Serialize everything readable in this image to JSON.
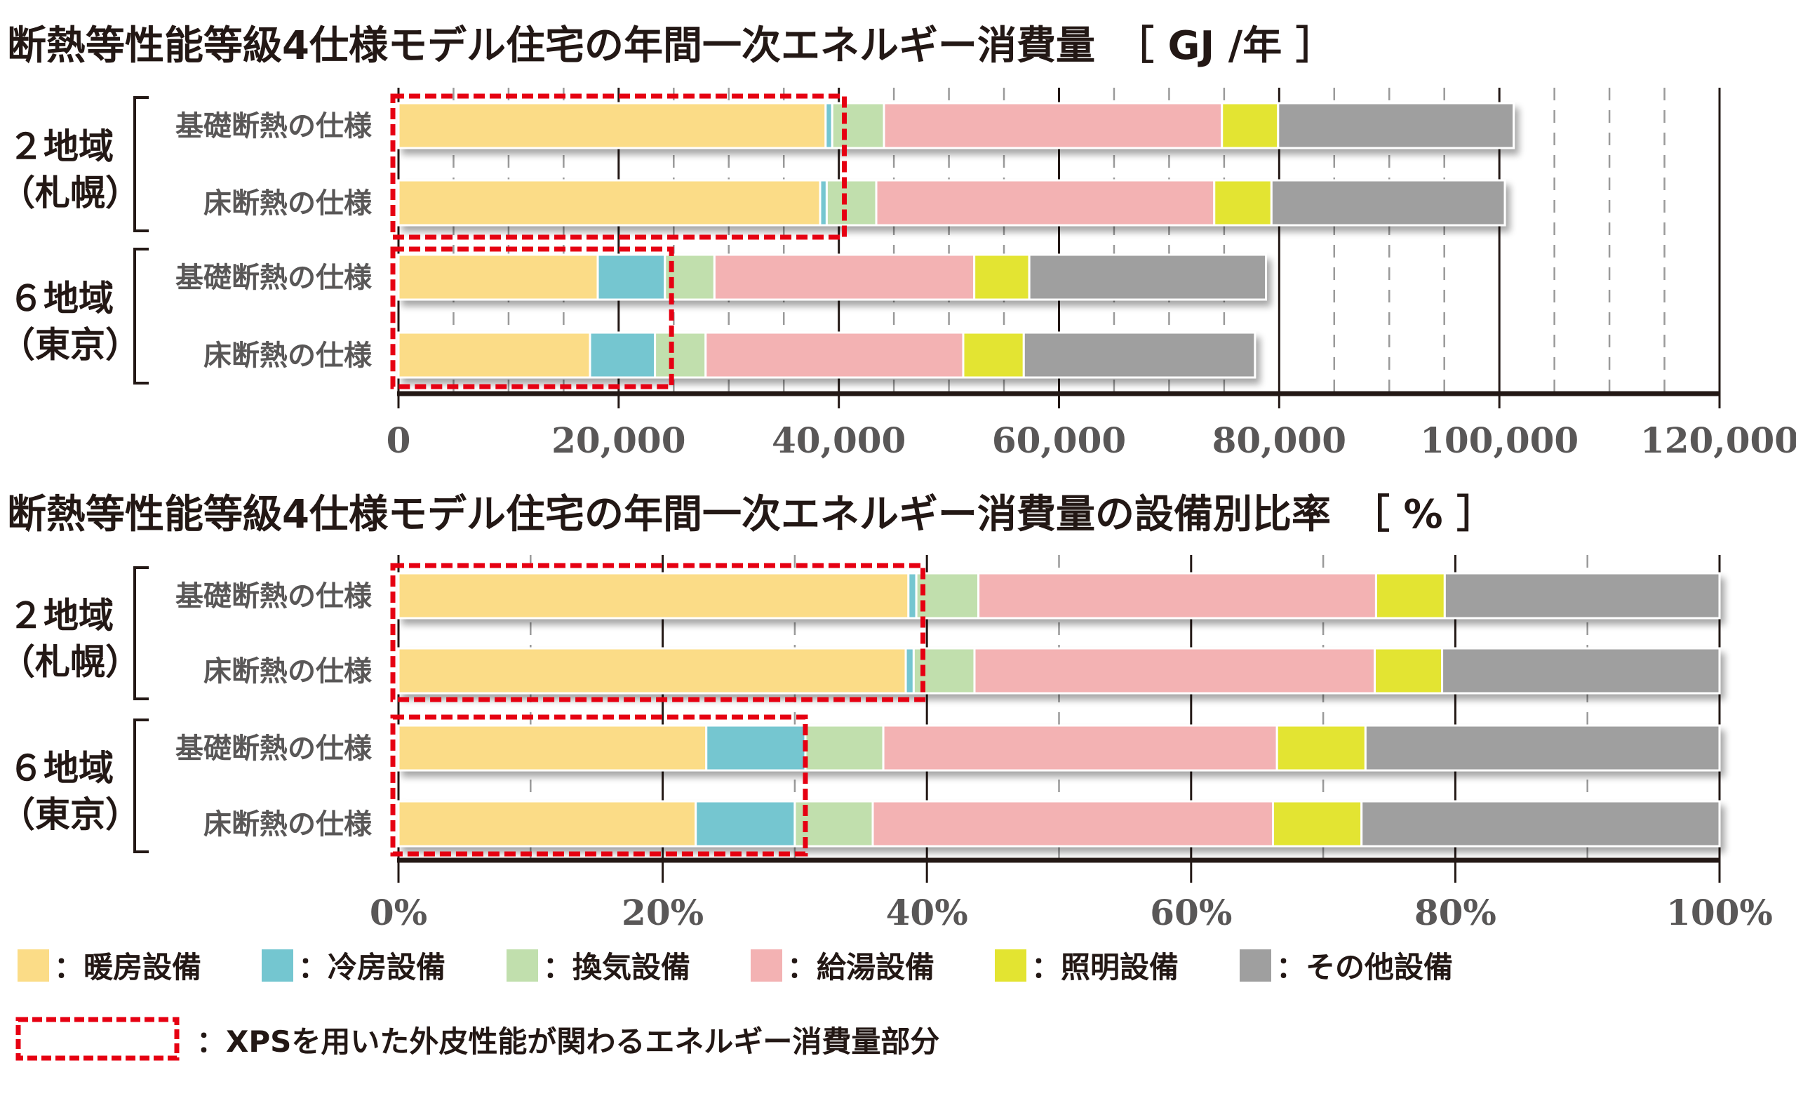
{
  "categories_legend": [
    {
      "key": "heating",
      "label": "：暖房設備",
      "color": "#FBDC87"
    },
    {
      "key": "cooling",
      "label": "：冷房設備",
      "color": "#74C6D0"
    },
    {
      "key": "ventilation",
      "label": "：換気設備",
      "color": "#C1DFAD"
    },
    {
      "key": "hotwater",
      "label": "：給湯設備",
      "color": "#F3B2B3"
    },
    {
      "key": "lighting",
      "label": "：照明設備",
      "color": "#E3E431"
    },
    {
      "key": "other",
      "label": "：その他設備",
      "color": "#9F9F9F"
    }
  ],
  "highlight_legend": {
    "label": "：XPSを用いた外皮性能が関わるエネルギー消費量部分",
    "color": "#E60012"
  },
  "groups": [
    {
      "label_line1": "２地域",
      "label_line2": "（札幌）"
    },
    {
      "label_line1": "６地域",
      "label_line2": "（東京）"
    }
  ],
  "chart_data": [
    {
      "type": "bar",
      "orientation": "horizontal",
      "stacked": true,
      "title": "断熱等性能等級4仕様モデル住宅の年間一次エネルギー消費量　［ GJ /年 ］",
      "xlabel": "",
      "ylabel": "",
      "xlim": [
        0,
        120000
      ],
      "x_ticks": [
        0,
        20000,
        40000,
        60000,
        80000,
        100000,
        120000
      ],
      "x_tick_labels": [
        "0",
        "20,000",
        "40,000",
        "60,000",
        "80,000",
        "100,000",
        "120,000"
      ],
      "minor_grid_step": 5000,
      "grid": true,
      "categories": [
        "基礎断熱の仕様",
        "床断熱の仕様",
        "基礎断熱の仕様",
        "床断熱の仕様"
      ],
      "category_groups": [
        "２地域（札幌）",
        "２地域（札幌）",
        "６地域（東京）",
        "６地域（東京）"
      ],
      "series": [
        {
          "name": "暖房設備",
          "values": [
            38800,
            38300,
            18100,
            17400
          ]
        },
        {
          "name": "冷房設備",
          "values": [
            600,
            600,
            6100,
            5900
          ]
        },
        {
          "name": "換気設備",
          "values": [
            4700,
            4500,
            4500,
            4600
          ]
        },
        {
          "name": "給湯設備",
          "values": [
            30700,
            30700,
            23600,
            23400
          ]
        },
        {
          "name": "照明設備",
          "values": [
            5100,
            5200,
            5000,
            5500
          ]
        },
        {
          "name": "その他設備",
          "values": [
            21400,
            21200,
            21500,
            21000
          ]
        }
      ],
      "highlights": [
        {
          "label": "XPS-related (2地域)",
          "rows": [
            0,
            1
          ],
          "extent": 40500
        },
        {
          "label": "XPS-related (6地域)",
          "rows": [
            2,
            3
          ],
          "extent": 24800
        }
      ],
      "legend": "bottom"
    },
    {
      "type": "bar",
      "orientation": "horizontal",
      "stacked": true,
      "title": "断熱等性能等級4仕様モデル住宅の年間一次エネルギー消費量の設備別比率　［ % ］",
      "xlabel": "",
      "ylabel": "",
      "xlim": [
        0,
        100
      ],
      "x_ticks": [
        0,
        20,
        40,
        60,
        80,
        100
      ],
      "x_tick_labels": [
        "0%",
        "20%",
        "40%",
        "60%",
        "80%",
        "100%"
      ],
      "minor_grid_step": 10,
      "grid": true,
      "categories": [
        "基礎断熱の仕様",
        "床断熱の仕様",
        "基礎断熱の仕様",
        "床断熱の仕様"
      ],
      "category_groups": [
        "２地域（札幌）",
        "２地域（札幌）",
        "６地域（東京）",
        "６地域（東京）"
      ],
      "series": [
        {
          "name": "暖房設備",
          "values": [
            38.6,
            38.4,
            23.3,
            22.5
          ]
        },
        {
          "name": "冷房設備",
          "values": [
            0.6,
            0.6,
            7.5,
            7.5
          ]
        },
        {
          "name": "換気設備",
          "values": [
            4.7,
            4.6,
            5.9,
            5.9
          ]
        },
        {
          "name": "給湯設備",
          "values": [
            30.1,
            30.3,
            29.8,
            30.3
          ]
        },
        {
          "name": "照明設備",
          "values": [
            5.2,
            5.1,
            6.7,
            6.7
          ]
        },
        {
          "name": "その他設備",
          "values": [
            20.8,
            21.0,
            26.8,
            27.1
          ]
        }
      ],
      "highlights": [
        {
          "label": "XPS-related (2地域)",
          "rows": [
            0,
            1
          ],
          "extent": 39.7
        },
        {
          "label": "XPS-related (6地域)",
          "rows": [
            2,
            3
          ],
          "extent": 30.8
        }
      ],
      "legend": "bottom"
    }
  ]
}
